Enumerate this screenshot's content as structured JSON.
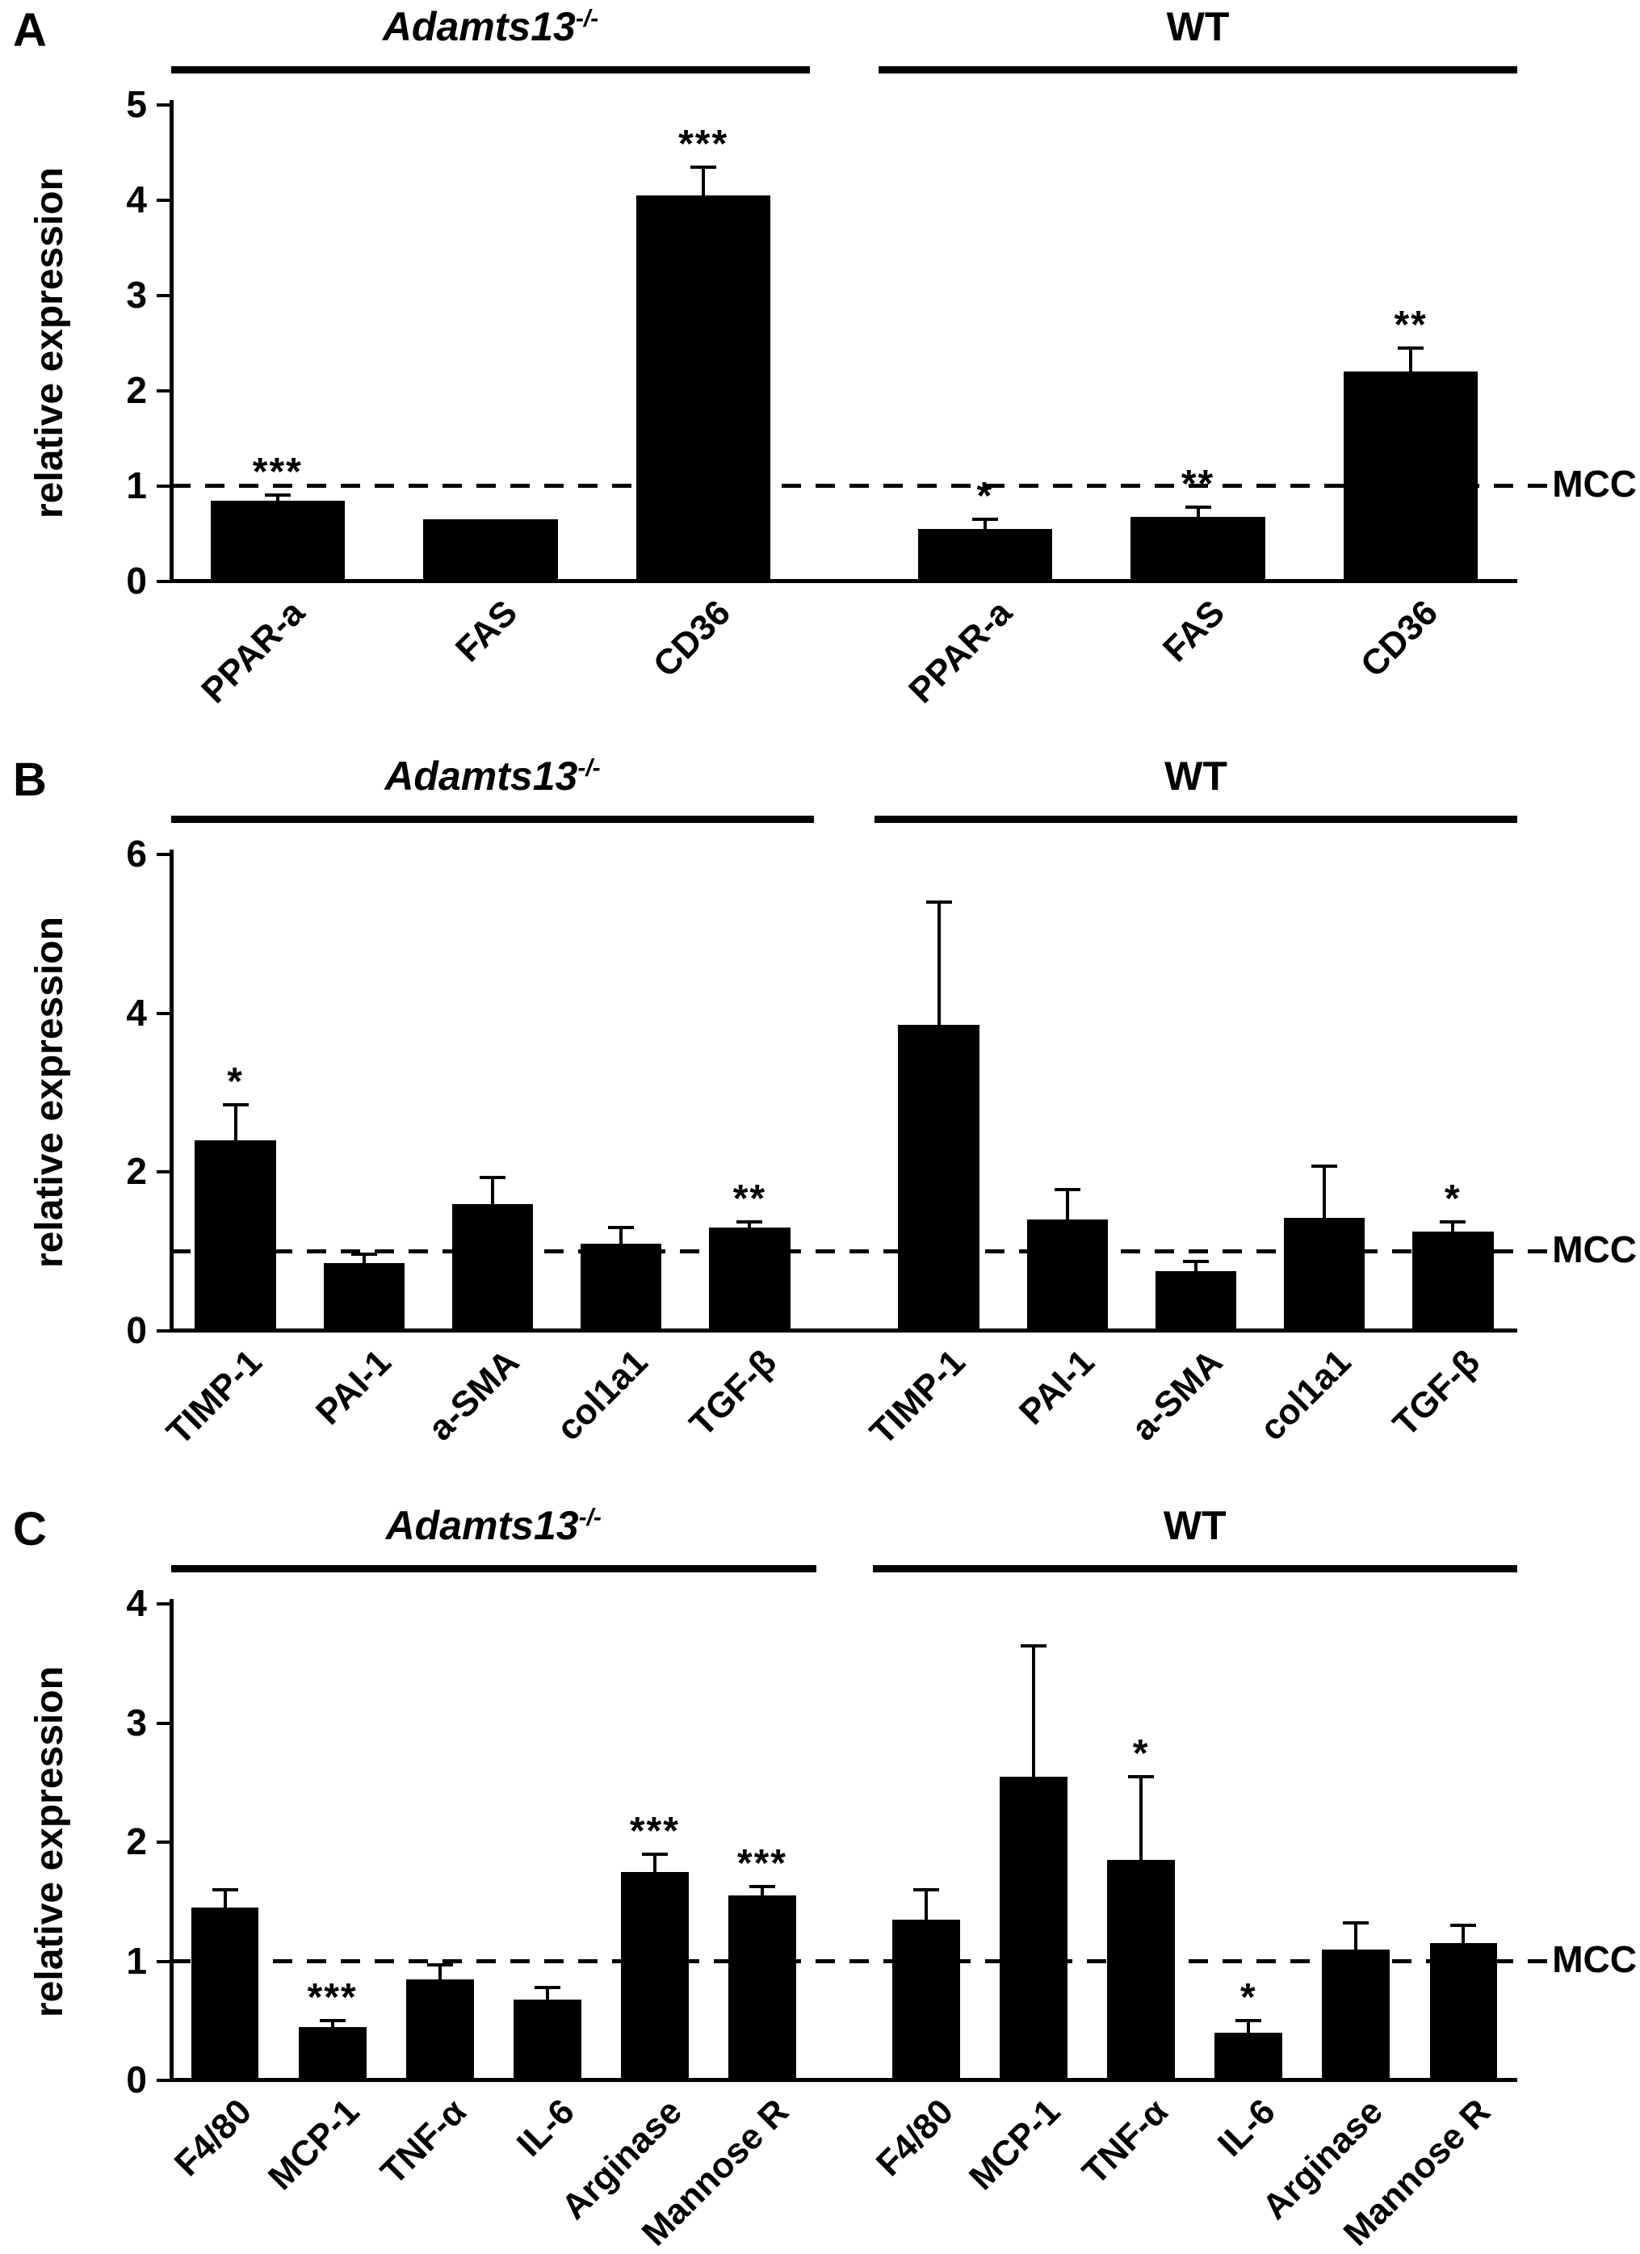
{
  "chart_data": [
    {
      "type": "bar",
      "panel_label": "A",
      "ylabel": "relative expression",
      "ylim": [
        0,
        5
      ],
      "yticks": [
        0,
        1,
        2,
        3,
        4,
        5
      ],
      "reference_line": {
        "value": 1,
        "label": "MCC"
      },
      "bar_color": "#000000",
      "legend_position": "none",
      "grid": false,
      "groups": [
        {
          "label": "Adamts13",
          "label_sup": "-/-",
          "italic": true,
          "categories": [
            "PPAR-a",
            "FAS",
            "CD36"
          ],
          "values": [
            0.85,
            0.65,
            4.05
          ],
          "errors": [
            0.06,
            0.0,
            0.3
          ],
          "sig": [
            "***",
            "",
            "***"
          ]
        },
        {
          "label": "WT",
          "label_sup": "",
          "italic": false,
          "categories": [
            "PPAR-a",
            "FAS",
            "CD36"
          ],
          "values": [
            0.55,
            0.68,
            2.2
          ],
          "errors": [
            0.1,
            0.1,
            0.25
          ],
          "sig": [
            "*",
            "**",
            "**"
          ]
        }
      ]
    },
    {
      "type": "bar",
      "panel_label": "B",
      "ylabel": "relative expression",
      "ylim": [
        0,
        6
      ],
      "yticks": [
        0,
        2,
        4,
        6
      ],
      "reference_line": {
        "value": 1,
        "label": "MCC"
      },
      "bar_color": "#000000",
      "legend_position": "none",
      "grid": false,
      "groups": [
        {
          "label": "Adamts13",
          "label_sup": "-/-",
          "italic": true,
          "categories": [
            "TIMP-1",
            "PAI-1",
            "a-SMA",
            "col1a1",
            "TGF-β"
          ],
          "values": [
            2.4,
            0.85,
            1.6,
            1.1,
            1.3
          ],
          "errors": [
            0.45,
            0.12,
            0.33,
            0.2,
            0.07
          ],
          "sig": [
            "*",
            "",
            "",
            "",
            "**"
          ]
        },
        {
          "label": "WT",
          "label_sup": "",
          "italic": false,
          "categories": [
            "TIMP-1",
            "PAI-1",
            "a-SMA",
            "col1a1",
            "TGF-β"
          ],
          "values": [
            3.85,
            1.4,
            0.75,
            1.42,
            1.25
          ],
          "errors": [
            1.55,
            0.38,
            0.12,
            0.65,
            0.12
          ],
          "sig": [
            "",
            "",
            "",
            "",
            "*"
          ]
        }
      ]
    },
    {
      "type": "bar",
      "panel_label": "C",
      "ylabel": "relative expression",
      "ylim": [
        0,
        4
      ],
      "yticks": [
        0,
        1,
        2,
        3,
        4
      ],
      "reference_line": {
        "value": 1,
        "label": "MCC"
      },
      "bar_color": "#000000",
      "legend_position": "none",
      "grid": false,
      "groups": [
        {
          "label": "Adamts13",
          "label_sup": "-/-",
          "italic": true,
          "categories": [
            "F4/80",
            "MCP-1",
            "TNF-α",
            "IL-6",
            "Arginase",
            "Mannose R"
          ],
          "values": [
            1.45,
            0.45,
            0.85,
            0.68,
            1.75,
            1.55
          ],
          "errors": [
            0.15,
            0.05,
            0.12,
            0.1,
            0.15,
            0.08
          ],
          "sig": [
            "",
            "***",
            "",
            "",
            "***",
            "***"
          ]
        },
        {
          "label": "WT",
          "label_sup": "",
          "italic": false,
          "categories": [
            "F4/80",
            "MCP-1",
            "TNF-α",
            "IL-6",
            "Arginase",
            "Mannose R"
          ],
          "values": [
            1.35,
            2.55,
            1.85,
            0.4,
            1.1,
            1.15
          ],
          "errors": [
            0.25,
            1.1,
            0.7,
            0.1,
            0.22,
            0.15
          ],
          "sig": [
            "",
            "",
            "*",
            "*",
            "",
            ""
          ]
        }
      ]
    }
  ]
}
